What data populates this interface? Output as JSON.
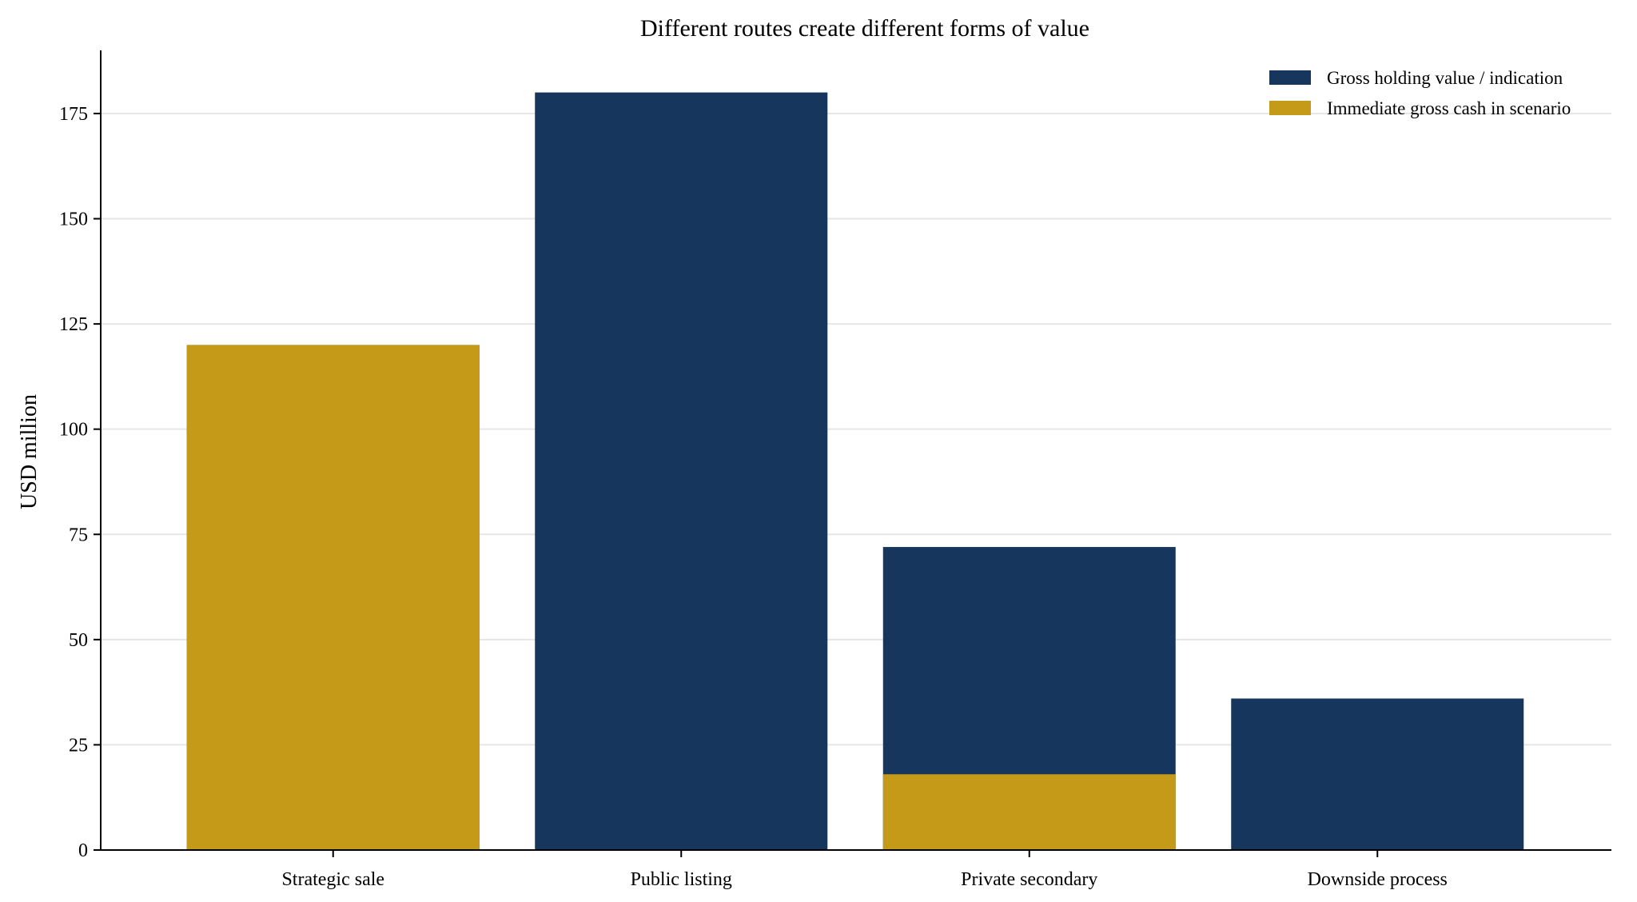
{
  "chart_data": {
    "type": "bar",
    "title": "Different routes create different forms of value",
    "xlabel": "",
    "ylabel": "USD million",
    "categories": [
      "Strategic sale",
      "Public listing",
      "Private secondary",
      "Downside process"
    ],
    "series": [
      {
        "name": "Gross holding value / indication",
        "values": [
          120,
          180,
          72,
          36
        ],
        "color": "#17365d"
      },
      {
        "name": "Immediate gross cash in scenario",
        "values": [
          120,
          0,
          18,
          0
        ],
        "color": "#c49a18"
      }
    ],
    "ylim": [
      0,
      190
    ],
    "yticks": [
      0,
      25,
      50,
      75,
      100,
      125,
      150,
      175
    ],
    "grid": "horizontal",
    "legend_position": "top-right",
    "overlay": "immediate cash bar drawn in front of holding value bar"
  }
}
